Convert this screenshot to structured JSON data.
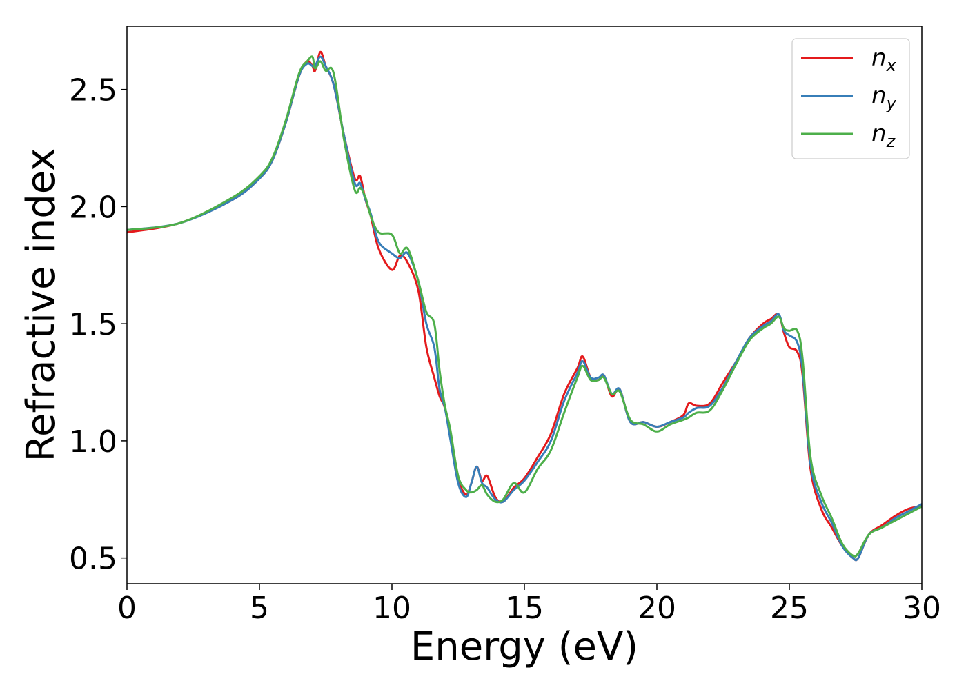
{
  "chart_data": {
    "type": "line",
    "title": "",
    "xlabel": "Energy (eV)",
    "ylabel": "Refractive index",
    "xlim": [
      0,
      30
    ],
    "ylim": [
      0.39,
      2.77
    ],
    "xticks": [
      0,
      5,
      10,
      15,
      20,
      25,
      30
    ],
    "xtick_labels": [
      "0",
      "5",
      "10",
      "15",
      "20",
      "25",
      "30"
    ],
    "yticks": [
      0.5,
      1.0,
      1.5,
      2.0,
      2.5
    ],
    "ytick_labels": [
      "0.5",
      "1.0",
      "1.5",
      "2.0",
      "2.5"
    ],
    "grid": false,
    "legend_position": "top-right",
    "series": [
      {
        "name": "n_x",
        "label_main": "n",
        "label_sub": "x",
        "color": "#e41a1c",
        "x": [
          0,
          2,
          4,
          5,
          5.5,
          6,
          6.5,
          6.8,
          7,
          7.1,
          7.3,
          7.5,
          7.8,
          8.2,
          8.6,
          8.8,
          9.0,
          9.2,
          9.5,
          10.0,
          10.3,
          10.6,
          11.0,
          11.3,
          11.6,
          11.8,
          12.0,
          12.2,
          12.5,
          12.8,
          13.0,
          13.2,
          13.4,
          13.6,
          13.9,
          14.2,
          14.6,
          15.0,
          15.5,
          16.0,
          16.5,
          17.0,
          17.2,
          17.5,
          17.8,
          18.0,
          18.3,
          18.6,
          19.0,
          19.5,
          20.0,
          20.5,
          21.0,
          21.2,
          21.5,
          22.0,
          22.5,
          23.0,
          23.5,
          24.0,
          24.3,
          24.6,
          24.8,
          25.0,
          25.3,
          25.5,
          25.8,
          26.2,
          26.6,
          27.0,
          27.4,
          27.6,
          28.0,
          28.5,
          29.0,
          29.5,
          30.0
        ],
        "y": [
          1.89,
          1.93,
          2.03,
          2.12,
          2.2,
          2.36,
          2.56,
          2.62,
          2.6,
          2.58,
          2.66,
          2.6,
          2.52,
          2.3,
          2.12,
          2.13,
          2.03,
          1.96,
          1.82,
          1.73,
          1.79,
          1.76,
          1.64,
          1.4,
          1.27,
          1.19,
          1.14,
          1.02,
          0.84,
          0.77,
          0.82,
          0.89,
          0.83,
          0.85,
          0.76,
          0.74,
          0.8,
          0.84,
          0.93,
          1.03,
          1.2,
          1.31,
          1.36,
          1.27,
          1.26,
          1.28,
          1.19,
          1.22,
          1.08,
          1.08,
          1.06,
          1.08,
          1.11,
          1.16,
          1.15,
          1.16,
          1.25,
          1.34,
          1.44,
          1.5,
          1.52,
          1.54,
          1.46,
          1.4,
          1.38,
          1.28,
          0.88,
          0.71,
          0.63,
          0.55,
          0.5,
          0.5,
          0.6,
          0.64,
          0.68,
          0.71,
          0.72
        ]
      },
      {
        "name": "n_y",
        "label_main": "n",
        "label_sub": "y",
        "color": "#377eb8",
        "x": [
          0,
          2,
          4,
          5,
          5.5,
          6,
          6.5,
          6.8,
          7,
          7.1,
          7.3,
          7.5,
          7.8,
          8.2,
          8.6,
          8.8,
          9.0,
          9.2,
          9.5,
          10.0,
          10.3,
          10.6,
          11.0,
          11.3,
          11.6,
          11.8,
          12.0,
          12.2,
          12.5,
          12.8,
          13.0,
          13.2,
          13.4,
          13.6,
          13.9,
          14.2,
          14.6,
          15.0,
          15.5,
          16.0,
          16.5,
          17.0,
          17.2,
          17.5,
          17.8,
          18.0,
          18.3,
          18.6,
          19.0,
          19.5,
          20.0,
          20.5,
          21.0,
          21.2,
          21.5,
          22.0,
          22.5,
          23.0,
          23.5,
          24.0,
          24.3,
          24.6,
          24.8,
          25.0,
          25.3,
          25.5,
          25.8,
          26.2,
          26.6,
          27.0,
          27.4,
          27.6,
          28.0,
          28.5,
          29.0,
          29.5,
          30.0
        ],
        "y": [
          1.9,
          1.93,
          2.03,
          2.12,
          2.2,
          2.36,
          2.56,
          2.61,
          2.6,
          2.6,
          2.64,
          2.6,
          2.52,
          2.3,
          2.1,
          2.1,
          2.03,
          1.97,
          1.85,
          1.8,
          1.78,
          1.8,
          1.68,
          1.5,
          1.4,
          1.22,
          1.14,
          1.01,
          0.82,
          0.76,
          0.82,
          0.89,
          0.82,
          0.8,
          0.75,
          0.74,
          0.79,
          0.83,
          0.91,
          1.0,
          1.17,
          1.29,
          1.34,
          1.27,
          1.27,
          1.28,
          1.2,
          1.22,
          1.08,
          1.08,
          1.06,
          1.08,
          1.1,
          1.12,
          1.14,
          1.15,
          1.23,
          1.34,
          1.44,
          1.49,
          1.51,
          1.54,
          1.47,
          1.45,
          1.42,
          1.3,
          0.9,
          0.74,
          0.65,
          0.55,
          0.5,
          0.5,
          0.6,
          0.63,
          0.67,
          0.7,
          0.73
        ]
      },
      {
        "name": "n_z",
        "label_main": "n",
        "label_sub": "z",
        "color": "#4daf4a",
        "x": [
          0,
          2,
          4,
          5,
          5.5,
          6,
          6.5,
          6.8,
          7,
          7.1,
          7.3,
          7.5,
          7.8,
          8.2,
          8.6,
          8.8,
          9.0,
          9.2,
          9.5,
          10.0,
          10.3,
          10.6,
          11.0,
          11.3,
          11.6,
          11.8,
          12.0,
          12.2,
          12.5,
          12.8,
          13.0,
          13.2,
          13.4,
          13.6,
          13.9,
          14.2,
          14.6,
          15.0,
          15.5,
          16.0,
          16.5,
          17.0,
          17.2,
          17.5,
          17.8,
          18.0,
          18.3,
          18.6,
          19.0,
          19.5,
          20.0,
          20.5,
          21.0,
          21.2,
          21.5,
          22.0,
          22.5,
          23.0,
          23.5,
          24.0,
          24.3,
          24.6,
          24.8,
          25.0,
          25.3,
          25.5,
          25.8,
          26.2,
          26.6,
          27.0,
          27.4,
          27.6,
          28.0,
          28.5,
          29.0,
          29.5,
          30.0
        ],
        "y": [
          1.9,
          1.93,
          2.04,
          2.13,
          2.21,
          2.37,
          2.57,
          2.62,
          2.64,
          2.59,
          2.62,
          2.58,
          2.57,
          2.28,
          2.07,
          2.08,
          2.04,
          1.96,
          1.89,
          1.88,
          1.8,
          1.82,
          1.68,
          1.55,
          1.5,
          1.3,
          1.15,
          1.05,
          0.85,
          0.79,
          0.78,
          0.79,
          0.81,
          0.77,
          0.74,
          0.75,
          0.82,
          0.78,
          0.88,
          0.96,
          1.12,
          1.27,
          1.32,
          1.26,
          1.26,
          1.27,
          1.2,
          1.21,
          1.09,
          1.07,
          1.04,
          1.07,
          1.09,
          1.1,
          1.12,
          1.13,
          1.22,
          1.33,
          1.43,
          1.48,
          1.5,
          1.53,
          1.48,
          1.47,
          1.47,
          1.35,
          0.93,
          0.77,
          0.67,
          0.56,
          0.51,
          0.52,
          0.6,
          0.63,
          0.66,
          0.69,
          0.72
        ]
      }
    ]
  }
}
